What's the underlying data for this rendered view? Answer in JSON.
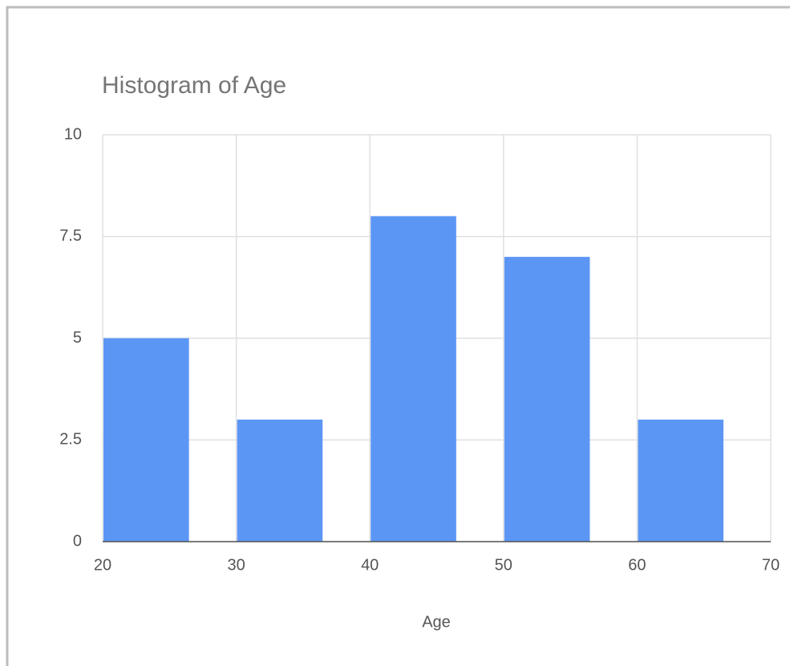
{
  "chart_data": {
    "type": "histogram",
    "title": "Histogram of Age",
    "x_label": "Age",
    "bins": [
      20,
      30,
      40,
      50,
      60,
      70
    ],
    "values": [
      5,
      3,
      8,
      7,
      3
    ],
    "color": "#5c96f5",
    "xlim": [
      20,
      70
    ],
    "xticks": [
      20,
      30,
      40,
      50,
      60,
      70
    ],
    "ylim": [
      0,
      10
    ],
    "yticks": [
      0,
      2.5,
      5,
      7.5,
      10
    ],
    "grid": true
  }
}
